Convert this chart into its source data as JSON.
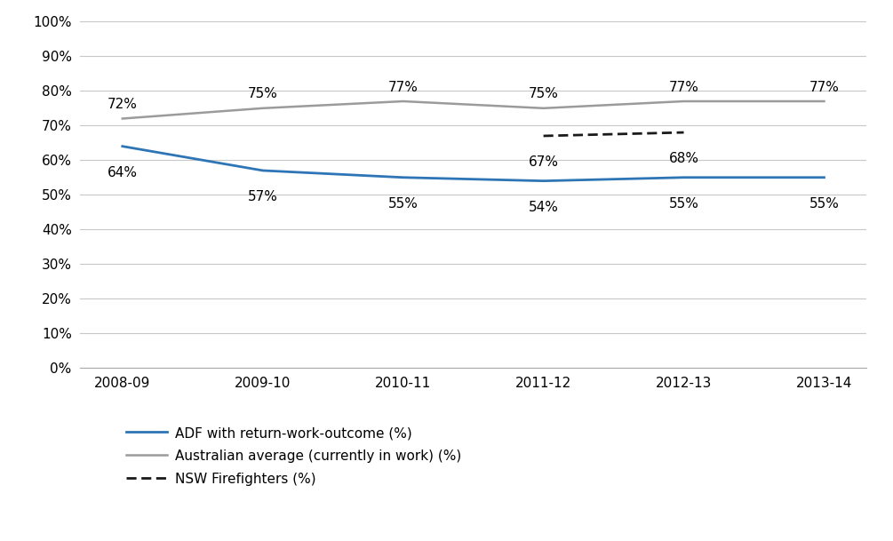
{
  "years": [
    "2008-09",
    "2009-10",
    "2010-11",
    "2011-12",
    "2012-13",
    "2013-14"
  ],
  "adf": [
    64,
    57,
    55,
    54,
    55,
    55
  ],
  "aus_avg": [
    72,
    75,
    77,
    75,
    77,
    77
  ],
  "nsw_ff_line": [
    67,
    68
  ],
  "nsw_ff_years": [
    "2011-12",
    "2012-13"
  ],
  "adf_color": "#2e75b6",
  "aus_avg_color": "#9b9b9b",
  "nsw_ff_color": "#1a1a1a",
  "legend_labels": [
    "ADF with return-work-outcome (%)",
    "Australian average (currently in work) (%)",
    "NSW Firefighters (%)"
  ],
  "ylim": [
    0,
    100
  ],
  "yticks": [
    0,
    10,
    20,
    30,
    40,
    50,
    60,
    70,
    80,
    90,
    100
  ],
  "grid_color": "#c8c8c8",
  "bg_color": "#ffffff",
  "label_fontsize": 11,
  "tick_fontsize": 11,
  "legend_fontsize": 11
}
